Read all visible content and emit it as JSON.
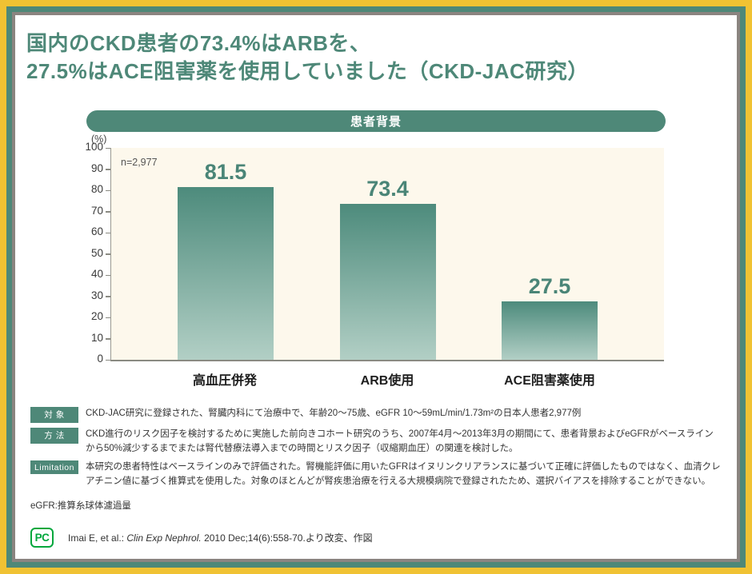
{
  "title": {
    "line1": "国内のCKD患者の73.4%はARBを、",
    "line2": "27.5%はACE阻害薬を使用していました（CKD-JAC研究）"
  },
  "chart_header": "患者背景",
  "chart_data": {
    "type": "bar",
    "title": "患者背景",
    "categories": [
      "高血圧併発",
      "ARB使用",
      "ACE阻害薬使用"
    ],
    "values": [
      81.5,
      73.4,
      27.5
    ],
    "value_labels": [
      "81.5",
      "73.4",
      "27.5"
    ],
    "xlabel": "",
    "ylabel": "(%)",
    "ylim": [
      0,
      100
    ],
    "yticks": [
      0,
      10,
      20,
      30,
      40,
      50,
      60,
      70,
      80,
      90,
      100
    ],
    "annotation": "n=2,977",
    "grid": false,
    "legend": "none",
    "bar_color_top": "#4d8b7c",
    "bar_color_bottom": "#b2cfc5",
    "plot_bg": "#fdf8ec"
  },
  "notes": [
    {
      "badge": "対 象",
      "text": "CKD-JAC研究に登録された、腎臓内科にて治療中で、年齢20～75歳、eGFR 10～59mL/min/1.73m²の日本人患者2,977例"
    },
    {
      "badge": "方 法",
      "text": "CKD進行のリスク因子を検討するために実施した前向きコホート研究のうち、2007年4月～2013年3月の期間にて、患者背景およびeGFRがベースラインから50%減少するまでまたは腎代替療法導入までの時間とリスク因子（収縮期血圧）の関連を検討した。"
    },
    {
      "badge": "Limitation",
      "text": "本研究の患者特性はベースラインのみで評価された。腎機能評価に用いたGFRはイヌリンクリアランスに基づいて正確に評価したものではなく、血清クレアチニン値に基づく推算式を使用した。対象のほとんどが腎疾患治療を行える大規模病院で登録されたため、選択バイアスを排除することができない。"
    }
  ],
  "abbreviation_note": "eGFR:推算糸球体濾過量",
  "footer": {
    "logo_text": "PC",
    "citation_prefix": "Imai E, et al.: ",
    "citation_journal": "Clin Exp Nephrol.",
    "citation_suffix": " 2010 Dec;14(6):558-70.より改変、作図"
  },
  "colors": {
    "frame_yellow": "#f0c233",
    "frame_teal": "#4e8878",
    "frame_gray": "#8b8480",
    "accent_teal": "#4e8878",
    "value_label_teal": "#4a8577",
    "logo_green": "#00a73c"
  }
}
